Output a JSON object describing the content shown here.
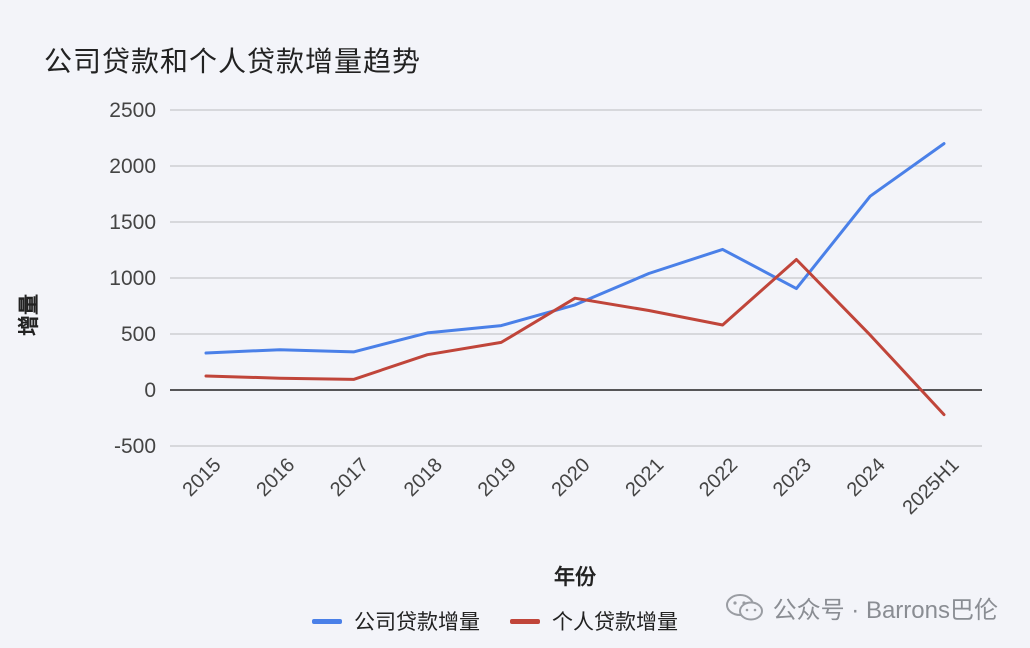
{
  "chart_data": {
    "type": "line",
    "title": "公司贷款和个人贷款增量趋势",
    "xlabel": "年份",
    "ylabel": "增量",
    "categories": [
      "2015",
      "2016",
      "2017",
      "2018",
      "2019",
      "2020",
      "2021",
      "2022",
      "2023",
      "2024",
      "2025H1"
    ],
    "ylim": [
      -500,
      2500
    ],
    "yticks": [
      -500,
      0,
      500,
      1000,
      1500,
      2000,
      2500
    ],
    "grid": true,
    "legend_position": "bottom",
    "series": [
      {
        "name": "公司贷款增量",
        "color": "#4a80e8",
        "values": [
          330,
          360,
          340,
          510,
          575,
          760,
          1040,
          1255,
          905,
          1730,
          2200
        ]
      },
      {
        "name": "个人贷款增量",
        "color": "#c0453a",
        "values": [
          125,
          105,
          95,
          315,
          425,
          820,
          710,
          580,
          1165,
          490,
          -220
        ]
      }
    ]
  },
  "watermark": {
    "text": "公众号 · Barrons巴伦",
    "icon": "wechat-icon"
  }
}
